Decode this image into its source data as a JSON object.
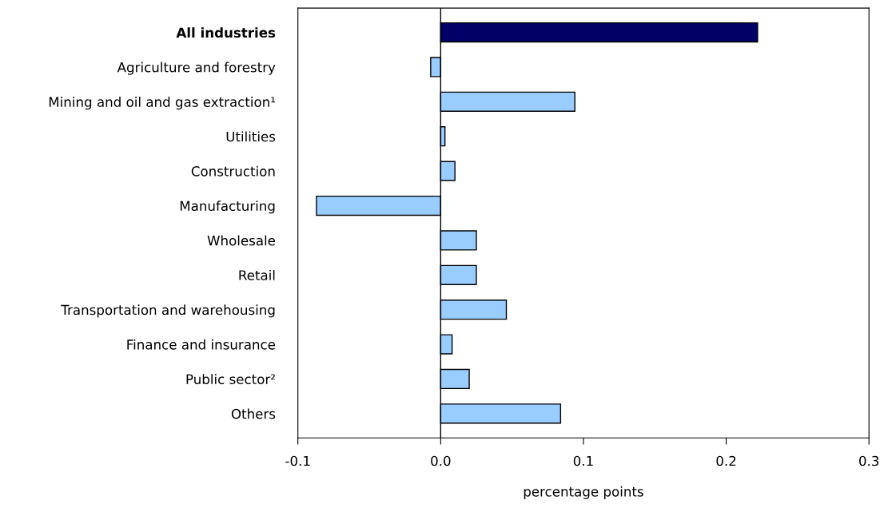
{
  "chart_data": {
    "type": "bar",
    "orientation": "horizontal",
    "categories": [
      "All industries",
      "Agriculture and forestry",
      "Mining and oil and gas extraction¹",
      "Utilities",
      "Construction",
      "Manufacturing",
      "Wholesale",
      "Retail",
      "Transportation and warehousing",
      "Finance and insurance",
      "Public sector²",
      "Others"
    ],
    "values": [
      0.222,
      -0.007,
      0.094,
      0.003,
      0.01,
      -0.087,
      0.025,
      0.025,
      0.046,
      0.008,
      0.02,
      0.084
    ],
    "colors": [
      "#000066",
      "#99ccff",
      "#99ccff",
      "#99ccff",
      "#99ccff",
      "#99ccff",
      "#99ccff",
      "#99ccff",
      "#99ccff",
      "#99ccff",
      "#99ccff",
      "#99ccff"
    ],
    "xlim": [
      -0.1,
      0.3
    ],
    "xticks": [
      {
        "value": -0.1,
        "label": "-0.1"
      },
      {
        "value": 0.0,
        "label": "0.0"
      },
      {
        "value": 0.1,
        "label": "0.1"
      },
      {
        "value": 0.2,
        "label": "0.2"
      },
      {
        "value": 0.3,
        "label": "0.3"
      }
    ],
    "xlabel": "percentage points"
  }
}
